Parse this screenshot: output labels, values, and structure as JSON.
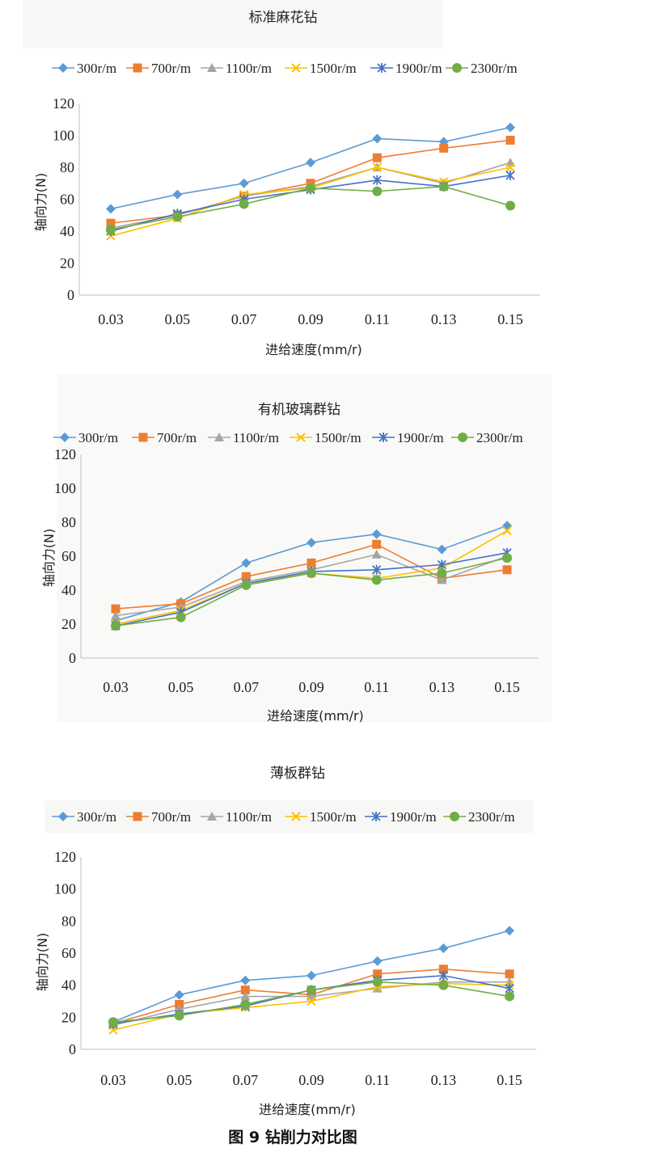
{
  "figure_caption": "图 9  钻削力对比图",
  "palette": {
    "300r/m": "#5b9bd5",
    "700r/m": "#ed7d31",
    "1100r/m": "#a5a5a5",
    "1500r/m": "#ffc000",
    "1900r/m": "#4472c4",
    "2300r/m": "#70ad47"
  },
  "chart_data": [
    {
      "type": "line",
      "title": "标准麻花钻",
      "xlabel": "进给速度(mm/r)",
      "ylabel": "轴向力(N)",
      "categories": [
        "0.03",
        "0.05",
        "0.07",
        "0.09",
        "0.11",
        "0.13",
        "0.15"
      ],
      "ylim": [
        0,
        120
      ],
      "yticks": [
        0,
        20,
        40,
        60,
        80,
        100,
        120
      ],
      "grid": false,
      "legend": "top",
      "series": [
        {
          "name": "300r/m",
          "marker": "diamond",
          "values": [
            54,
            63,
            70,
            83,
            98,
            96,
            105
          ]
        },
        {
          "name": "700r/m",
          "marker": "square",
          "values": [
            45,
            50,
            62,
            70,
            86,
            92,
            97
          ]
        },
        {
          "name": "1100r/m",
          "marker": "triangle",
          "values": [
            42,
            50,
            62,
            68,
            80,
            70,
            83
          ]
        },
        {
          "name": "1500r/m",
          "marker": "x",
          "values": [
            37,
            48,
            63,
            67,
            80,
            71,
            80
          ]
        },
        {
          "name": "1900r/m",
          "marker": "star",
          "values": [
            40,
            51,
            60,
            66,
            72,
            68,
            75
          ]
        },
        {
          "name": "2300r/m",
          "marker": "circle",
          "values": [
            41,
            49,
            57,
            67,
            65,
            68,
            56
          ]
        }
      ]
    },
    {
      "type": "line",
      "title": "有机玻璃群钻",
      "xlabel": "进给速度(mm/r)",
      "ylabel": "轴向力(N)",
      "categories": [
        "0.03",
        "0.05",
        "0.07",
        "0.09",
        "0.11",
        "0.13",
        "0.15"
      ],
      "ylim": [
        0,
        120
      ],
      "yticks": [
        0,
        20,
        40,
        60,
        80,
        100,
        120
      ],
      "grid": false,
      "legend": "top",
      "series": [
        {
          "name": "300r/m",
          "marker": "diamond",
          "values": [
            22,
            33,
            56,
            68,
            73,
            64,
            78
          ]
        },
        {
          "name": "700r/m",
          "marker": "square",
          "values": [
            29,
            32,
            48,
            56,
            67,
            47,
            52
          ]
        },
        {
          "name": "1100r/m",
          "marker": "triangle",
          "values": [
            25,
            30,
            45,
            52,
            61,
            46,
            60
          ]
        },
        {
          "name": "1500r/m",
          "marker": "x",
          "values": [
            20,
            28,
            44,
            50,
            47,
            53,
            75
          ]
        },
        {
          "name": "1900r/m",
          "marker": "star",
          "values": [
            19,
            27,
            44,
            51,
            52,
            55,
            62
          ]
        },
        {
          "name": "2300r/m",
          "marker": "circle",
          "values": [
            19,
            24,
            43,
            50,
            46,
            50,
            59
          ]
        }
      ]
    },
    {
      "type": "line",
      "title": "薄板群钻",
      "xlabel": "进给速度(mm/r)",
      "ylabel": "轴向力(N)",
      "categories": [
        "0.03",
        "0.05",
        "0.07",
        "0.09",
        "0.11",
        "0.13",
        "0.15"
      ],
      "ylim": [
        0,
        120
      ],
      "yticks": [
        0,
        20,
        40,
        60,
        80,
        100,
        120
      ],
      "grid": false,
      "legend": "top",
      "series": [
        {
          "name": "300r/m",
          "marker": "diamond",
          "values": [
            17,
            34,
            43,
            46,
            55,
            63,
            74
          ]
        },
        {
          "name": "700r/m",
          "marker": "square",
          "values": [
            16,
            28,
            37,
            34,
            47,
            50,
            47
          ]
        },
        {
          "name": "1100r/m",
          "marker": "triangle",
          "values": [
            15,
            25,
            33,
            33,
            38,
            42,
            42
          ]
        },
        {
          "name": "1500r/m",
          "marker": "x",
          "values": [
            12,
            22,
            26,
            30,
            39,
            41,
            40
          ]
        },
        {
          "name": "1900r/m",
          "marker": "star",
          "values": [
            16,
            22,
            27,
            37,
            43,
            46,
            38
          ]
        },
        {
          "name": "2300r/m",
          "marker": "circle",
          "values": [
            17,
            21,
            28,
            37,
            42,
            40,
            33
          ]
        }
      ]
    }
  ]
}
